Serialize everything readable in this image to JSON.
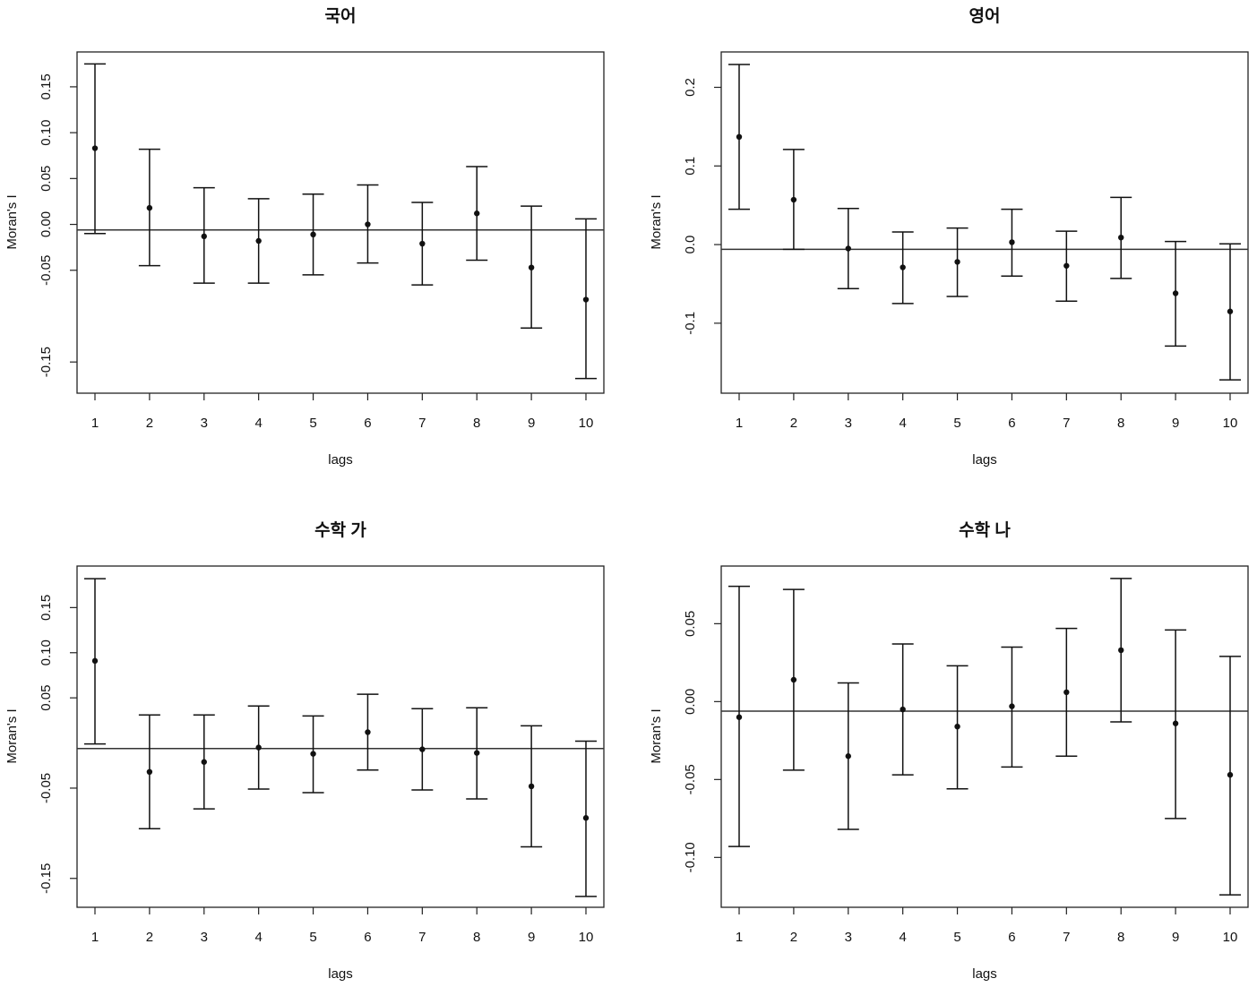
{
  "chart_data": [
    {
      "type": "errorbar",
      "title": "국어",
      "xlabel": "lags",
      "ylabel": "Moran's  I",
      "x": [
        1,
        2,
        3,
        4,
        5,
        6,
        7,
        8,
        9,
        10
      ],
      "x_ticks": [
        "1",
        "2",
        "3",
        "4",
        "5",
        "6",
        "7",
        "8",
        "9",
        "10"
      ],
      "y_ticks": [
        0.15,
        0.1,
        0.05,
        0.0,
        -0.05,
        -0.15
      ],
      "y_tick_labels": [
        "0.15",
        "0.10",
        "0.05",
        "0.00",
        "-0.05",
        "-0.15"
      ],
      "ylim": [
        -0.184,
        0.188
      ],
      "reference_line": -0.0061,
      "estimate": [
        0.083,
        0.018,
        -0.013,
        -0.018,
        -0.011,
        0.0,
        -0.021,
        0.012,
        -0.047,
        -0.082
      ],
      "lower": [
        -0.01,
        -0.045,
        -0.064,
        -0.064,
        -0.055,
        -0.042,
        -0.066,
        -0.039,
        -0.113,
        -0.168
      ],
      "upper": [
        0.175,
        0.082,
        0.04,
        0.028,
        0.033,
        0.043,
        0.024,
        0.063,
        0.02,
        0.006
      ]
    },
    {
      "type": "errorbar",
      "title": "영어",
      "xlabel": "lags",
      "ylabel": "Moran's  I",
      "x": [
        1,
        2,
        3,
        4,
        5,
        6,
        7,
        8,
        9,
        10
      ],
      "x_ticks": [
        "1",
        "2",
        "3",
        "4",
        "5",
        "6",
        "7",
        "8",
        "9",
        "10"
      ],
      "y_ticks": [
        0.2,
        0.1,
        0.0,
        -0.1
      ],
      "y_tick_labels": [
        "0.2",
        "0.1",
        "0.0",
        "-0.1"
      ],
      "ylim": [
        -0.189,
        0.245
      ],
      "reference_line": -0.0061,
      "estimate": [
        0.137,
        0.057,
        -0.005,
        -0.029,
        -0.022,
        0.003,
        -0.027,
        0.009,
        -0.062,
        -0.085
      ],
      "lower": [
        0.045,
        -0.006,
        -0.056,
        -0.075,
        -0.066,
        -0.04,
        -0.072,
        -0.043,
        -0.129,
        -0.172
      ],
      "upper": [
        0.229,
        0.121,
        0.046,
        0.016,
        0.021,
        0.045,
        0.017,
        0.06,
        0.004,
        0.001
      ]
    },
    {
      "type": "errorbar",
      "title": "수학 가",
      "xlabel": "lags",
      "ylabel": "Moran's  I",
      "x": [
        1,
        2,
        3,
        4,
        5,
        6,
        7,
        8,
        9,
        10
      ],
      "x_ticks": [
        "1",
        "2",
        "3",
        "4",
        "5",
        "6",
        "7",
        "8",
        "9",
        "10"
      ],
      "y_ticks": [
        0.15,
        0.1,
        0.05,
        -0.05,
        -0.15
      ],
      "y_tick_labels": [
        "0.15",
        "0.10",
        "0.05",
        "-0.05",
        "-0.15"
      ],
      "ylim": [
        -0.182,
        0.196
      ],
      "reference_line": -0.0061,
      "estimate": [
        0.091,
        -0.032,
        -0.021,
        -0.005,
        -0.012,
        0.012,
        -0.007,
        -0.011,
        -0.048,
        -0.083
      ],
      "lower": [
        -0.001,
        -0.095,
        -0.073,
        -0.051,
        -0.055,
        -0.03,
        -0.052,
        -0.062,
        -0.115,
        -0.17
      ],
      "upper": [
        0.182,
        0.031,
        0.031,
        0.041,
        0.03,
        0.054,
        0.038,
        0.039,
        0.019,
        0.002
      ]
    },
    {
      "type": "errorbar",
      "title": "수학 나",
      "xlabel": "lags",
      "ylabel": "Moran's  I",
      "x": [
        1,
        2,
        3,
        4,
        5,
        6,
        7,
        8,
        9,
        10
      ],
      "x_ticks": [
        "1",
        "2",
        "3",
        "4",
        "5",
        "6",
        "7",
        "8",
        "9",
        "10"
      ],
      "y_ticks": [
        0.05,
        0.0,
        -0.05,
        -0.1
      ],
      "y_tick_labels": [
        "0.05",
        "0.00",
        "-0.05",
        "-0.10"
      ],
      "ylim": [
        -0.132,
        0.087
      ],
      "reference_line": -0.0061,
      "estimate": [
        -0.01,
        0.014,
        -0.035,
        -0.005,
        -0.016,
        -0.003,
        0.006,
        0.033,
        -0.014,
        -0.047
      ],
      "lower": [
        -0.093,
        -0.044,
        -0.082,
        -0.047,
        -0.056,
        -0.042,
        -0.035,
        -0.013,
        -0.075,
        -0.124
      ],
      "upper": [
        0.074,
        0.072,
        0.012,
        0.037,
        0.023,
        0.035,
        0.047,
        0.079,
        0.046,
        0.029
      ]
    }
  ]
}
